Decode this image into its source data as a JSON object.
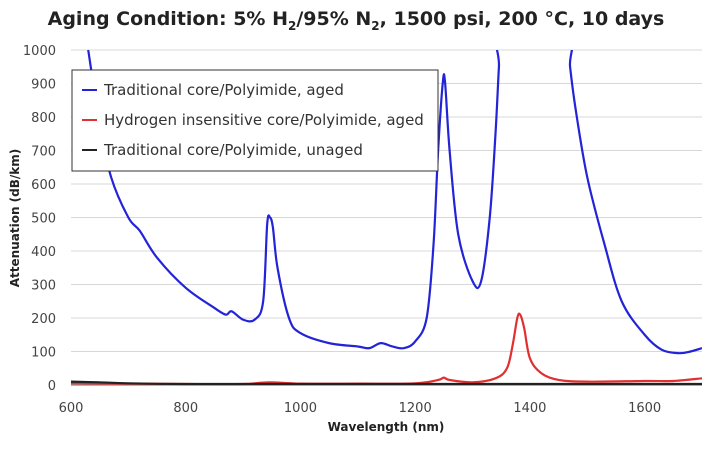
{
  "chart_data": {
    "type": "line",
    "title": {
      "prefix": "Aging Condition: 5% H",
      "sub1": "2",
      "mid": "/95% N",
      "sub2": "2",
      "suffix": ", 1500 psi, 200 °C, 10 days"
    },
    "xlabel": "Wavelength (nm)",
    "ylabel": "Attenuation (dB/km)",
    "xlim": [
      600,
      1700
    ],
    "ylim": [
      0,
      1000
    ],
    "xticks": [
      600,
      800,
      1000,
      1200,
      1400,
      1600
    ],
    "yticks": [
      0,
      100,
      200,
      300,
      400,
      500,
      600,
      700,
      800,
      900,
      1000
    ],
    "grid": "horizontal",
    "legend_position": "top-left",
    "series": [
      {
        "name": "Traditional core/Polyimide, aged",
        "color": "#2323d8",
        "x": [
          630,
          650,
          670,
          700,
          720,
          750,
          800,
          850,
          870,
          880,
          900,
          920,
          935,
          942,
          947,
          952,
          960,
          980,
          1000,
          1050,
          1100,
          1120,
          1140,
          1160,
          1180,
          1200,
          1220,
          1232,
          1240,
          1248,
          1252,
          1260,
          1275,
          1300,
          1315,
          1330,
          1340,
          1346,
          1350,
          1465,
          1470,
          1480,
          1500,
          1530,
          1560,
          1600,
          1630,
          1660,
          1680,
          1700
        ],
        "y": [
          1000,
          780,
          620,
          500,
          460,
          380,
          290,
          230,
          210,
          220,
          195,
          195,
          250,
          480,
          500,
          470,
          350,
          200,
          155,
          125,
          115,
          110,
          125,
          115,
          110,
          130,
          200,
          420,
          700,
          900,
          905,
          700,
          450,
          310,
          310,
          500,
          750,
          950,
          1050,
          1050,
          950,
          820,
          620,
          420,
          250,
          150,
          105,
          95,
          100,
          110
        ]
      },
      {
        "name": "Hydrogen insensitive core/Polyimide, aged",
        "color": "#e03030",
        "x": [
          600,
          700,
          800,
          900,
          945,
          1000,
          1100,
          1200,
          1240,
          1250,
          1260,
          1300,
          1340,
          1360,
          1370,
          1378,
          1383,
          1390,
          1400,
          1420,
          1450,
          1500,
          1600,
          1650,
          1700
        ],
        "y": [
          5,
          4,
          3,
          3,
          8,
          4,
          4,
          5,
          15,
          22,
          15,
          8,
          20,
          50,
          120,
          200,
          210,
          170,
          80,
          35,
          15,
          10,
          12,
          12,
          20
        ]
      },
      {
        "name": "Traditional core/Polyimide, unaged",
        "color": "#222222",
        "x": [
          600,
          650,
          700,
          800,
          1000,
          1200,
          1400,
          1700
        ],
        "y": [
          10,
          8,
          5,
          3,
          3,
          3,
          3,
          3
        ]
      }
    ]
  }
}
